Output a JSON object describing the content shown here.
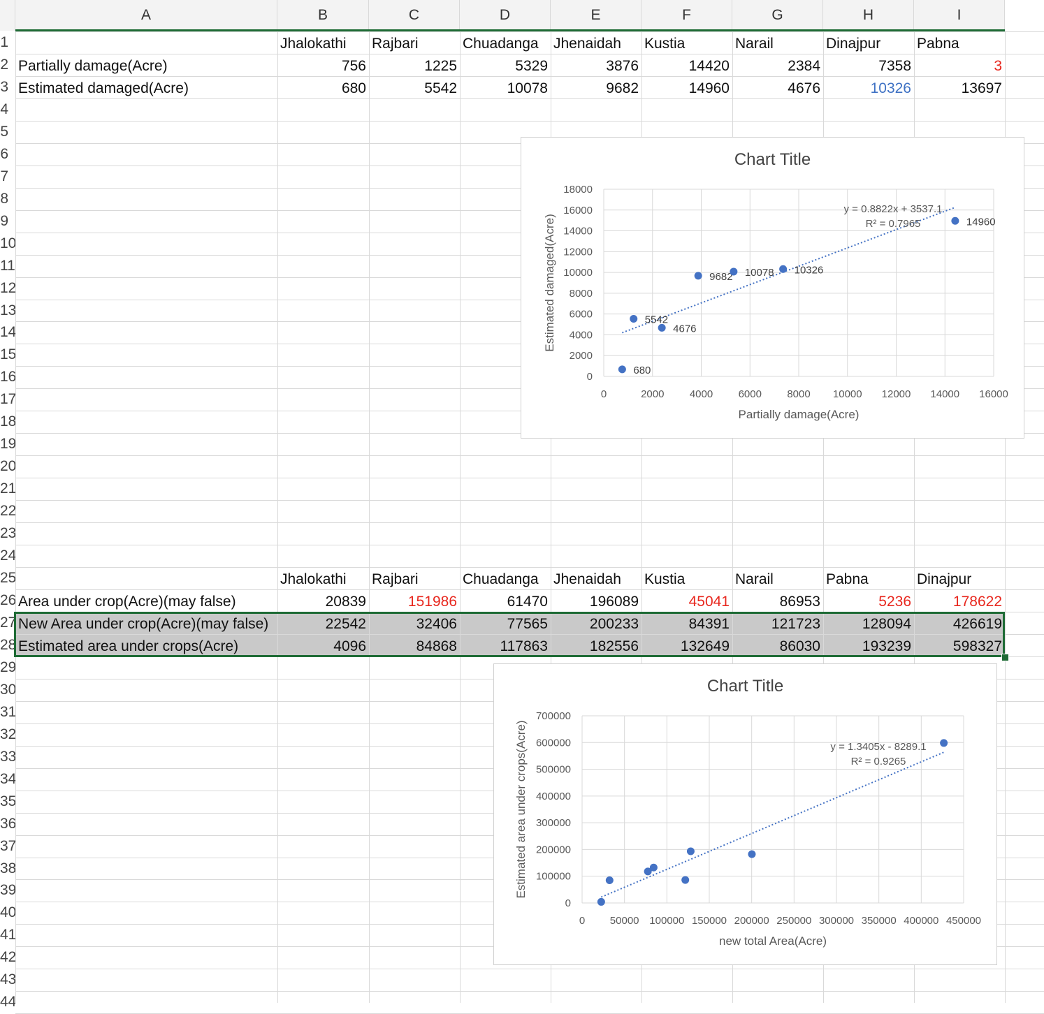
{
  "columns": [
    "A",
    "B",
    "C",
    "D",
    "E",
    "F",
    "G",
    "H",
    "I"
  ],
  "row_labels": [
    "1",
    "2",
    "3",
    "4",
    "5",
    "6",
    "7",
    "8",
    "9",
    "10",
    "11",
    "12",
    "13",
    "14",
    "15",
    "16",
    "17",
    "18",
    "19",
    "20",
    "21",
    "22",
    "23",
    "24",
    "25",
    "26",
    "27",
    "28",
    "29",
    "30",
    "31",
    "32",
    "33",
    "34",
    "35",
    "36",
    "37",
    "38",
    "39",
    "40",
    "41",
    "42",
    "43",
    "44"
  ],
  "table1": {
    "header": [
      "",
      "Jhalokathi",
      "Rajbari",
      "Chuadanga",
      "Jhenaidah",
      "Kustia",
      "Narail",
      "Dinajpur",
      "Pabna"
    ],
    "rows": [
      {
        "label": "Partially damage(Acre)",
        "values": [
          "756",
          "1225",
          "5329",
          "3876",
          "14420",
          "2384",
          "7358",
          "3"
        ]
      },
      {
        "label": "Estimated damaged(Acre)",
        "values": [
          "680",
          "5542",
          "10078",
          "9682",
          "14960",
          "4676",
          "10326",
          "13697"
        ]
      }
    ]
  },
  "table2": {
    "header": [
      "",
      "Jhalokathi",
      "Rajbari",
      "Chuadanga",
      "Jhenaidah",
      "Kustia",
      "Narail",
      "Pabna",
      "Dinajpur"
    ],
    "rows": [
      {
        "label": "Area under crop(Acre)(may false)",
        "values": [
          "20839",
          "151986",
          "61470",
          "196089",
          "45041",
          "86953",
          "5236",
          "178622"
        ]
      },
      {
        "label": "New Area under crop(Acre)(may false)",
        "values": [
          "22542",
          "32406",
          "77565",
          "200233",
          "84391",
          "121723",
          "128094",
          "426619"
        ]
      },
      {
        "label": "Estimated area under crops(Acre)",
        "values": [
          "4096",
          "84868",
          "117863",
          "182556",
          "132649",
          "86030",
          "193239",
          "598327"
        ]
      }
    ]
  },
  "colors": {
    "red": "#e8271e",
    "blue": "#3f72c4",
    "marker": "#4472c4",
    "trend": "#4472c4",
    "grid_green": "#1e6b35"
  },
  "chart_data": [
    {
      "type": "scatter",
      "title": "Chart Title",
      "xlabel": "Partially damage(Acre)",
      "ylabel": "Estimated damaged(Acre)",
      "xlim": [
        0,
        16000
      ],
      "ylim": [
        0,
        18000
      ],
      "xticks": [
        "0",
        "2000",
        "4000",
        "6000",
        "8000",
        "10000",
        "12000",
        "14000",
        "16000"
      ],
      "yticks": [
        "0",
        "2000",
        "4000",
        "6000",
        "8000",
        "10000",
        "12000",
        "14000",
        "16000",
        "18000"
      ],
      "grid": true,
      "points": [
        {
          "x": 756,
          "y": 680,
          "label": "680"
        },
        {
          "x": 1225,
          "y": 5542,
          "label": "5542"
        },
        {
          "x": 2384,
          "y": 4676,
          "label": "4676"
        },
        {
          "x": 3876,
          "y": 9682,
          "label": "9682"
        },
        {
          "x": 5329,
          "y": 10078,
          "label": "10078"
        },
        {
          "x": 7358,
          "y": 10326,
          "label": "10326"
        },
        {
          "x": 14420,
          "y": 14960,
          "label": "14960"
        }
      ],
      "trendline": {
        "slope": 0.8822,
        "intercept": 3537.1,
        "x_range": [
          756,
          14420
        ],
        "equation": "y = 0.8822x + 3537.1",
        "r2": "R² = 0.7965"
      }
    },
    {
      "type": "scatter",
      "title": "Chart Title",
      "xlabel": "new total Area(Acre)",
      "ylabel": "Estimated area under crops(Acre)",
      "xlim": [
        0,
        450000
      ],
      "ylim": [
        0,
        700000
      ],
      "xticks": [
        "0",
        "50000",
        "100000",
        "150000",
        "200000",
        "250000",
        "300000",
        "350000",
        "400000",
        "450000"
      ],
      "yticks": [
        "0",
        "100000",
        "200000",
        "300000",
        "400000",
        "500000",
        "600000",
        "700000"
      ],
      "grid": true,
      "points": [
        {
          "x": 22542,
          "y": 4096
        },
        {
          "x": 32406,
          "y": 84868
        },
        {
          "x": 77565,
          "y": 117863
        },
        {
          "x": 84391,
          "y": 132649
        },
        {
          "x": 121723,
          "y": 86030
        },
        {
          "x": 128094,
          "y": 193239
        },
        {
          "x": 200233,
          "y": 182556
        },
        {
          "x": 426619,
          "y": 598327
        }
      ],
      "trendline": {
        "slope": 1.3405,
        "intercept": -8289.1,
        "x_range": [
          22542,
          426619
        ],
        "equation": "y = 1.3405x - 8289.1",
        "r2": "R² = 0.9265"
      }
    }
  ]
}
